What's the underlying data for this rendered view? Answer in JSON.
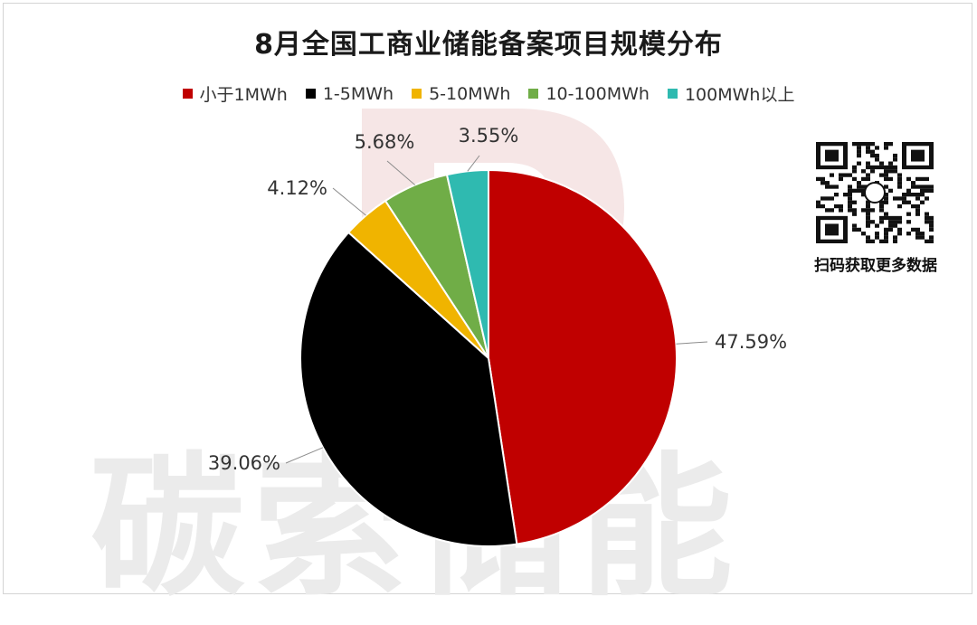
{
  "title": "8月全国工商业储能备案项目规模分布",
  "watermark": "碳索储能",
  "qr_caption": "扫码获取更多数据",
  "chart_data": {
    "type": "pie",
    "title": "8月全国工商业储能备案项目规模分布",
    "legend_position": "top",
    "categories": [
      "小于1MWh",
      "1-5MWh",
      "5-10MWh",
      "10-100MWh",
      "100MWh以上"
    ],
    "values": [
      47.59,
      39.06,
      4.12,
      5.68,
      3.55
    ],
    "labels": [
      "47.59%",
      "39.06%",
      "4.12%",
      "5.68%",
      "3.55%"
    ],
    "colors": [
      "#c00000",
      "#000000",
      "#f0b400",
      "#70ad47",
      "#2fbab0"
    ]
  }
}
